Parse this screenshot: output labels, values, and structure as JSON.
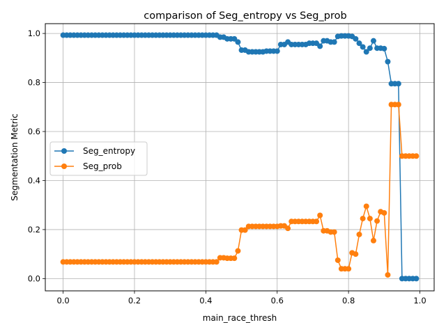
{
  "chart_data": {
    "type": "line",
    "title": "comparison of Seg_entropy vs Seg_prob",
    "xlabel": "main_race_thresh",
    "ylabel": "Segmentation Metric",
    "xlim": [
      -0.05,
      1.04
    ],
    "ylim": [
      -0.05,
      1.04
    ],
    "xticks": [
      0.0,
      0.2,
      0.4,
      0.6,
      0.8,
      1.0
    ],
    "xtick_labels": [
      "0.0",
      "0.2",
      "0.4",
      "0.6",
      "0.8",
      "1.0"
    ],
    "yticks": [
      0.0,
      0.2,
      0.4,
      0.6,
      0.8,
      1.0
    ],
    "ytick_labels": [
      "0.0",
      "0.2",
      "0.4",
      "0.6",
      "0.8",
      "1.0"
    ],
    "grid": true,
    "legend_position": "center-left",
    "x": [
      0.0,
      0.01,
      0.02,
      0.03,
      0.04,
      0.05,
      0.06,
      0.07,
      0.08,
      0.09,
      0.1,
      0.11,
      0.12,
      0.13,
      0.14,
      0.15,
      0.16,
      0.17,
      0.18,
      0.19,
      0.2,
      0.21,
      0.22,
      0.23,
      0.24,
      0.25,
      0.26,
      0.27,
      0.28,
      0.29,
      0.3,
      0.31,
      0.32,
      0.33,
      0.34,
      0.35,
      0.36,
      0.37,
      0.38,
      0.39,
      0.4,
      0.41,
      0.42,
      0.43,
      0.44,
      0.45,
      0.46,
      0.47,
      0.48,
      0.49,
      0.5,
      0.51,
      0.52,
      0.53,
      0.54,
      0.55,
      0.56,
      0.57,
      0.58,
      0.59,
      0.6,
      0.61,
      0.62,
      0.63,
      0.64,
      0.65,
      0.66,
      0.67,
      0.68,
      0.69,
      0.7,
      0.71,
      0.72,
      0.73,
      0.74,
      0.75,
      0.76,
      0.77,
      0.78,
      0.79,
      0.8,
      0.81,
      0.82,
      0.83,
      0.84,
      0.85,
      0.86,
      0.87,
      0.88,
      0.89,
      0.9,
      0.91,
      0.92,
      0.93,
      0.94,
      0.95,
      0.96,
      0.97,
      0.98,
      0.99
    ],
    "series": [
      {
        "name": "Seg_entropy",
        "color": "#1f77b4",
        "values": [
          0.993,
          0.993,
          0.993,
          0.993,
          0.993,
          0.993,
          0.993,
          0.993,
          0.993,
          0.993,
          0.993,
          0.993,
          0.993,
          0.993,
          0.993,
          0.993,
          0.993,
          0.993,
          0.993,
          0.993,
          0.993,
          0.993,
          0.993,
          0.993,
          0.993,
          0.993,
          0.993,
          0.993,
          0.993,
          0.993,
          0.993,
          0.993,
          0.993,
          0.993,
          0.993,
          0.993,
          0.993,
          0.993,
          0.993,
          0.993,
          0.993,
          0.993,
          0.993,
          0.993,
          0.985,
          0.985,
          0.978,
          0.978,
          0.978,
          0.965,
          0.932,
          0.932,
          0.925,
          0.925,
          0.925,
          0.925,
          0.925,
          0.928,
          0.928,
          0.928,
          0.928,
          0.955,
          0.955,
          0.965,
          0.955,
          0.955,
          0.955,
          0.955,
          0.955,
          0.96,
          0.96,
          0.96,
          0.948,
          0.97,
          0.97,
          0.965,
          0.965,
          0.988,
          0.99,
          0.99,
          0.99,
          0.988,
          0.978,
          0.96,
          0.945,
          0.925,
          0.94,
          0.97,
          0.94,
          0.94,
          0.938,
          0.885,
          0.795,
          0.795,
          0.795,
          0.0,
          0.0,
          0.0,
          0.0,
          0.0
        ]
      },
      {
        "name": "Seg_prob",
        "color": "#ff7f0e",
        "values": [
          0.068,
          0.068,
          0.068,
          0.068,
          0.068,
          0.068,
          0.068,
          0.068,
          0.068,
          0.068,
          0.068,
          0.068,
          0.068,
          0.068,
          0.068,
          0.068,
          0.068,
          0.068,
          0.068,
          0.068,
          0.068,
          0.068,
          0.068,
          0.068,
          0.068,
          0.068,
          0.068,
          0.068,
          0.068,
          0.068,
          0.068,
          0.068,
          0.068,
          0.068,
          0.068,
          0.068,
          0.068,
          0.068,
          0.068,
          0.068,
          0.068,
          0.068,
          0.068,
          0.068,
          0.085,
          0.085,
          0.083,
          0.083,
          0.083,
          0.113,
          0.198,
          0.198,
          0.213,
          0.213,
          0.213,
          0.213,
          0.213,
          0.213,
          0.213,
          0.213,
          0.213,
          0.215,
          0.215,
          0.205,
          0.233,
          0.233,
          0.233,
          0.233,
          0.233,
          0.233,
          0.233,
          0.233,
          0.258,
          0.195,
          0.195,
          0.19,
          0.19,
          0.075,
          0.04,
          0.04,
          0.04,
          0.105,
          0.1,
          0.18,
          0.245,
          0.295,
          0.245,
          0.155,
          0.235,
          0.273,
          0.268,
          0.015,
          0.71,
          0.71,
          0.71,
          0.5,
          0.5,
          0.5,
          0.5,
          0.5
        ]
      }
    ]
  }
}
